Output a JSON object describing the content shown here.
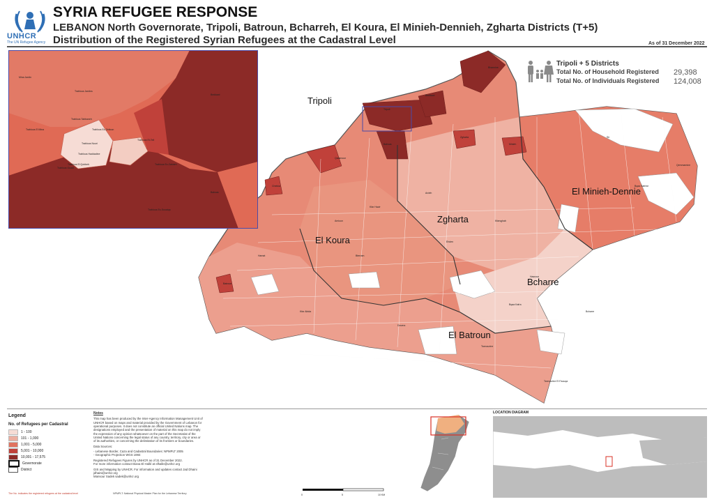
{
  "header": {
    "logo_text": "UNHCR",
    "logo_sub": "The UN Refugee Agency",
    "title": "SYRIA REFUGEE RESPONSE",
    "subtitle": "LEBANON  North Governorate, Tripoli, Batroun, Bcharreh, El Koura, El Minieh-Dennieh, Zgharta Districts (T+5)",
    "subtitle2": "Distribution of the Registered Syrian Refugees at the Cadastral Level",
    "as_of": "As of 31 December 2022"
  },
  "stats": {
    "heading": "Tripoli + 5 Districts",
    "households_label": "Total No. of Household Registered",
    "households_value": "29,398",
    "individuals_label": "Total No. of Individuals Registered",
    "individuals_value": "124,008",
    "icon": "family-icon"
  },
  "districts": {
    "tripoli": "Tripoli",
    "minieh": "El Minieh-Dennie",
    "zgharta": "Zgharta",
    "koura": "El Koura",
    "bcharre": "Bcharre",
    "batroun": "El Batroun"
  },
  "legend": {
    "title": "Legend",
    "subtitle": "No. of Refugees per Cadastral",
    "classes": [
      {
        "label": "1 - 100",
        "color": "#f6dcd5"
      },
      {
        "label": "101 - 1,000",
        "color": "#ecae9f"
      },
      {
        "label": "1,001 - 5,000",
        "color": "#e0735f"
      },
      {
        "label": "5,001 - 10,000",
        "color": "#c0413a"
      },
      {
        "label": "10,001 - 17,575",
        "color": "#8c2a27"
      }
    ],
    "governorate": "Governorate",
    "district": "District"
  },
  "notes": {
    "title": "Notes",
    "p1": "This map has been produced by the Inter-Agency Information Management Unit of UNHCR based on maps and material provided by the Government of Lebanon for operational purposes. It does not constitute an official United Nations map. The designations employed and the presentation of material on this map do not imply the expression of any opinion whatsoever on the part of the Secretariat of the United Nations concerning the legal status of any country, territory, city or area or of its authorities, or concerning the delimitation of its frontiers or boundaries.",
    "p2": "Data Sources:",
    "p3": "- Lebanese Border, Caza and Cadastral Boundaries: NPMPLT 2005",
    "p4": "- Geographic Projection WGS 1984",
    "p5": "Registered Refugees Figures by UNHCR as of 31 December 2022.",
    "p6": "For more information contact Diana El Hallé at elhalle@unhcr.org",
    "p7": "GIS and Mapping by UNHCR. For information and updates contact Jad Dhaini jdhaini@unhcr.org",
    "p8": "Mansour Sadek sadek@unhcr.org"
  },
  "scale": {
    "zero": "0",
    "mid": "5",
    "end": "10 KM"
  },
  "location": {
    "title": "LOCATION DIAGRAM"
  },
  "footer": {
    "red": "The No. indicates the registered refugees at the cadastral level",
    "grey": "NPMPLT: National Physical Master Plan for the Lebanese Territory"
  },
  "colors": {
    "border": "#4a4aa8",
    "water": "#ffffff",
    "land_grey": "#bdbdbd"
  }
}
